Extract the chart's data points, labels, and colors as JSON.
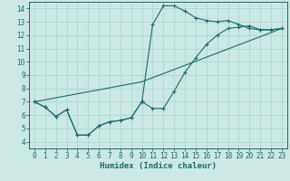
{
  "xlabel": "Humidex (Indice chaleur)",
  "bg_color": "#cce8e4",
  "grid_color": "#b0d8d4",
  "line_color": "#1a6b6b",
  "xlim": [
    -0.5,
    23.5
  ],
  "ylim": [
    3.5,
    14.5
  ],
  "xticks": [
    0,
    1,
    2,
    3,
    4,
    5,
    6,
    7,
    8,
    9,
    10,
    11,
    12,
    13,
    14,
    15,
    16,
    17,
    18,
    19,
    20,
    21,
    22,
    23
  ],
  "yticks": [
    4,
    5,
    6,
    7,
    8,
    9,
    10,
    11,
    12,
    13,
    14
  ],
  "line1_x": [
    0,
    1,
    2,
    3,
    4,
    5,
    6,
    7,
    8,
    9,
    10,
    11,
    12,
    13,
    14,
    15,
    16,
    17,
    18,
    19,
    20,
    21,
    22,
    23
  ],
  "line1_y": [
    7.0,
    6.6,
    5.9,
    6.4,
    4.5,
    4.5,
    5.2,
    5.5,
    5.6,
    5.8,
    7.0,
    12.8,
    14.2,
    14.2,
    13.8,
    13.3,
    13.1,
    13.0,
    13.1,
    12.8,
    12.5,
    12.4,
    12.4,
    12.5
  ],
  "line2_x": [
    0,
    1,
    2,
    3,
    4,
    5,
    6,
    7,
    8,
    9,
    10,
    11,
    12,
    13,
    14,
    15,
    16,
    17,
    18,
    19,
    20,
    21,
    22,
    23
  ],
  "line2_y": [
    7.0,
    6.6,
    5.9,
    6.4,
    4.5,
    4.5,
    5.2,
    5.5,
    5.6,
    5.8,
    7.0,
    6.5,
    6.5,
    7.8,
    9.2,
    10.3,
    11.3,
    12.0,
    12.5,
    12.6,
    12.7,
    12.4,
    12.4,
    12.5
  ],
  "line3_x": [
    0,
    10,
    23
  ],
  "line3_y": [
    7.0,
    8.5,
    12.5
  ]
}
